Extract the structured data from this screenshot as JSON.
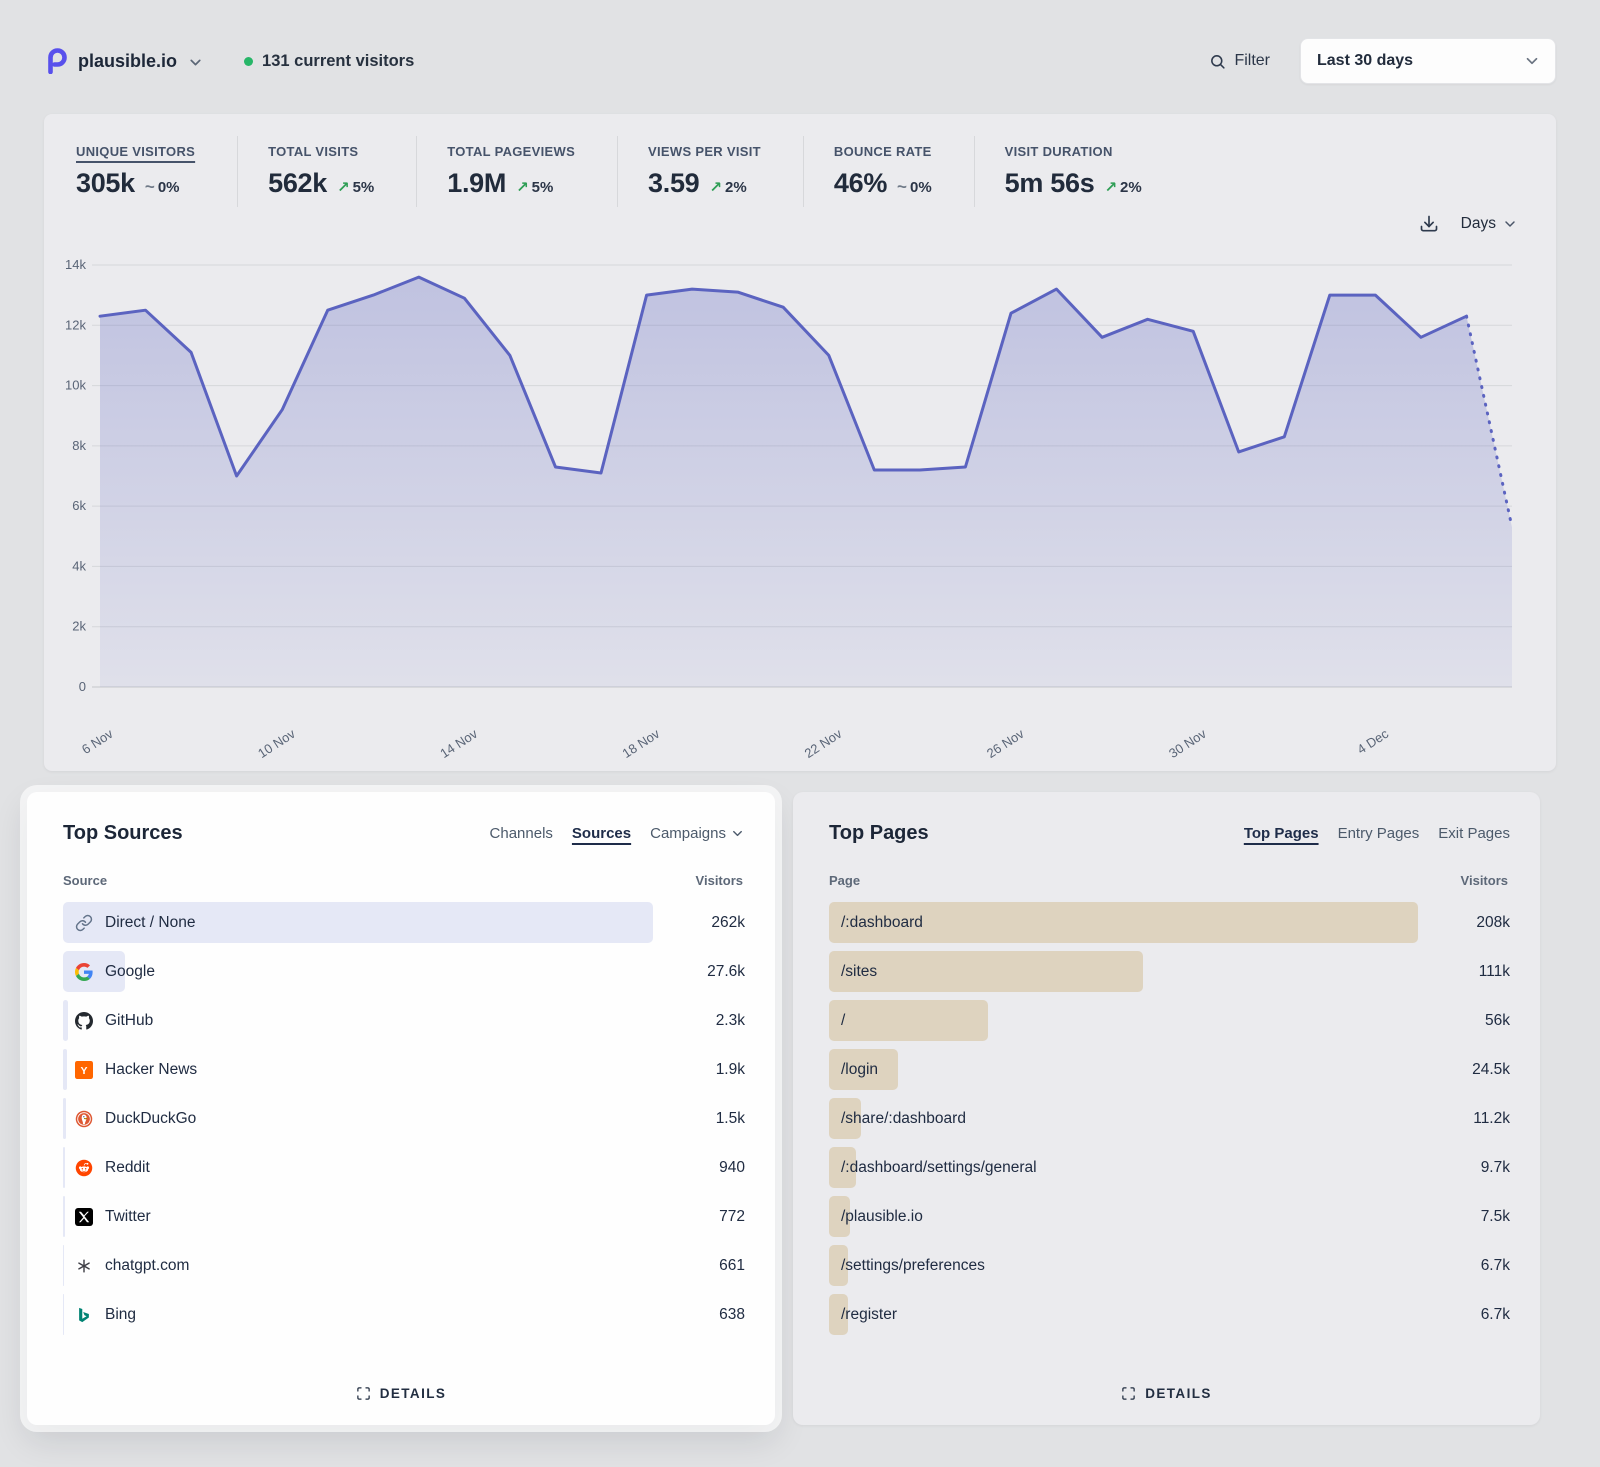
{
  "app": {
    "site_name": "plausible.io",
    "current_visitors": "131 current visitors",
    "filter_label": "Filter",
    "date_range": "Last 30 days"
  },
  "stats": [
    {
      "label": "UNIQUE VISITORS",
      "value": "305k",
      "change": "0%",
      "direction": "flat",
      "active": true
    },
    {
      "label": "TOTAL VISITS",
      "value": "562k",
      "change": "5%",
      "direction": "up",
      "active": false
    },
    {
      "label": "TOTAL PAGEVIEWS",
      "value": "1.9M",
      "change": "5%",
      "direction": "up",
      "active": false
    },
    {
      "label": "VIEWS PER VISIT",
      "value": "3.59",
      "change": "2%",
      "direction": "up",
      "active": false
    },
    {
      "label": "BOUNCE RATE",
      "value": "46%",
      "change": "0%",
      "direction": "flat",
      "active": false
    },
    {
      "label": "VISIT DURATION",
      "value": "5m 56s",
      "change": "2%",
      "direction": "up",
      "active": false
    }
  ],
  "chart_controls": {
    "interval_label": "Days"
  },
  "chart_data": {
    "type": "area",
    "series_name": "Unique visitors",
    "x_labels": [
      "6 Nov",
      "10 Nov",
      "14 Nov",
      "18 Nov",
      "22 Nov",
      "26 Nov",
      "30 Nov",
      "4 Dec"
    ],
    "x_label_indices": [
      0,
      4,
      8,
      12,
      16,
      20,
      24,
      28
    ],
    "values": [
      12300,
      12500,
      11100,
      7000,
      9200,
      12500,
      13000,
      13600,
      12900,
      11000,
      7300,
      7100,
      13000,
      13200,
      13100,
      12600,
      11000,
      7200,
      7200,
      7300,
      12400,
      13200,
      11600,
      12200,
      11800,
      7800,
      8300,
      13000,
      13000,
      11600,
      12300,
      5300
    ],
    "ylim": [
      0,
      14000
    ],
    "y_ticks": [
      "0",
      "2k",
      "4k",
      "6k",
      "8k",
      "10k",
      "12k",
      "14k"
    ],
    "dotted_from_index": 30,
    "grid": true,
    "legend": false,
    "line_color": "#5b63c0"
  },
  "sources": {
    "title": "Top Sources",
    "tabs": [
      {
        "label": "Channels",
        "active": false
      },
      {
        "label": "Sources",
        "active": true
      },
      {
        "label": "Campaigns",
        "active": false,
        "has_dropdown": true
      }
    ],
    "col_source": "Source",
    "col_visitors": "Visitors",
    "rows": [
      {
        "icon": "link-icon",
        "label": "Direct / None",
        "visitors": "262k",
        "value": 262000
      },
      {
        "icon": "google-icon",
        "label": "Google",
        "visitors": "27.6k",
        "value": 27600
      },
      {
        "icon": "github-icon",
        "label": "GitHub",
        "visitors": "2.3k",
        "value": 2300
      },
      {
        "icon": "hackernews-icon",
        "label": "Hacker News",
        "visitors": "1.9k",
        "value": 1900
      },
      {
        "icon": "duckduckgo-icon",
        "label": "DuckDuckGo",
        "visitors": "1.5k",
        "value": 1500
      },
      {
        "icon": "reddit-icon",
        "label": "Reddit",
        "visitors": "940",
        "value": 940
      },
      {
        "icon": "twitter-icon",
        "label": "Twitter",
        "visitors": "772",
        "value": 772
      },
      {
        "icon": "chatgpt-icon",
        "label": "chatgpt.com",
        "visitors": "661",
        "value": 661
      },
      {
        "icon": "bing-icon",
        "label": "Bing",
        "visitors": "638",
        "value": 638
      }
    ],
    "details_label": "DETAILS"
  },
  "pages": {
    "title": "Top Pages",
    "tabs": [
      {
        "label": "Top Pages",
        "active": true
      },
      {
        "label": "Entry Pages",
        "active": false
      },
      {
        "label": "Exit Pages",
        "active": false
      }
    ],
    "col_page": "Page",
    "col_visitors": "Visitors",
    "rows": [
      {
        "label": "/:dashboard",
        "visitors": "208k",
        "value": 208000
      },
      {
        "label": "/sites",
        "visitors": "111k",
        "value": 111000
      },
      {
        "label": "/",
        "visitors": "56k",
        "value": 56000
      },
      {
        "label": "/login",
        "visitors": "24.5k",
        "value": 24500
      },
      {
        "label": "/share/:dashboard",
        "visitors": "11.2k",
        "value": 11200
      },
      {
        "label": "/:dashboard/settings/general",
        "visitors": "9.7k",
        "value": 9700
      },
      {
        "label": "/plausible.io",
        "visitors": "7.5k",
        "value": 7500
      },
      {
        "label": "/settings/preferences",
        "visitors": "6.7k",
        "value": 6700
      },
      {
        "label": "/register",
        "visitors": "6.7k",
        "value": 6700
      }
    ],
    "details_label": "DETAILS"
  },
  "colors": {
    "background": "#e1e2e4",
    "card": "#ebebee",
    "accent": "#5b63c0",
    "positive": "#2e9e55",
    "source_bar": "rgba(101,116,205,0.16)",
    "page_bar": "rgba(193,154,83,0.30)",
    "live_dot": "#27b668"
  }
}
